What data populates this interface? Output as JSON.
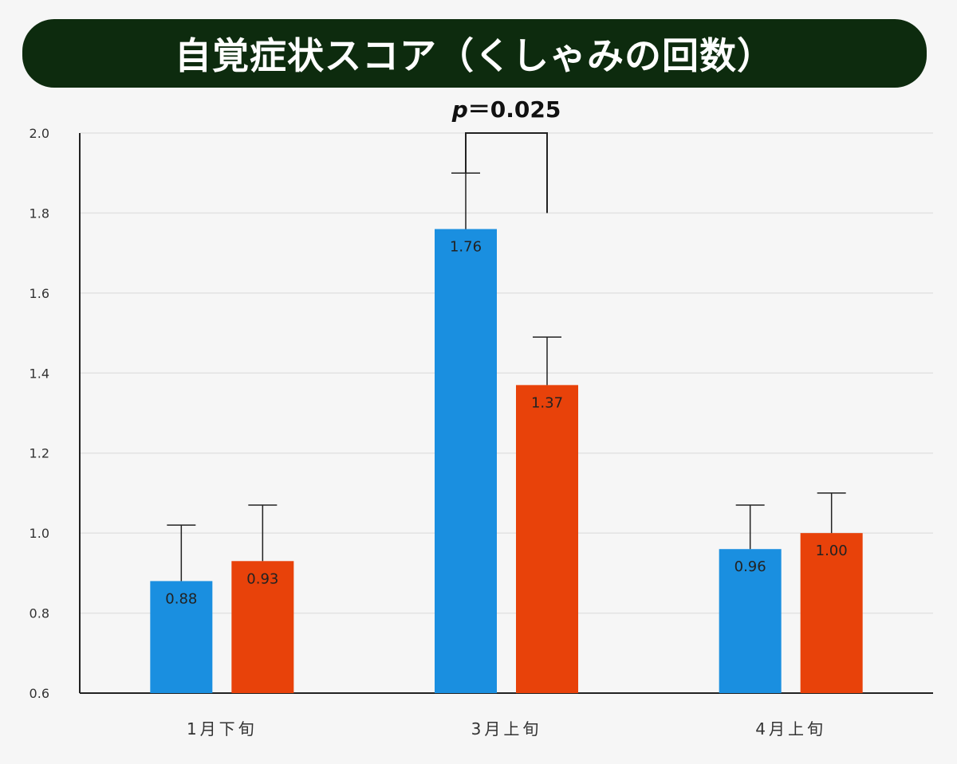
{
  "title": "自覚症状スコア（くしゃみの回数）",
  "colors": {
    "banner_bg": "#0d2b0e",
    "series_blue": "#1a8fe0",
    "series_red": "#e8420a",
    "grid": "#e2e2e2",
    "axis": "#222222"
  },
  "chart_data": {
    "type": "bar",
    "categories": [
      "1月下旬",
      "3月上旬",
      "4月上旬"
    ],
    "series": [
      {
        "color": "#1a8fe0",
        "values": [
          0.88,
          1.76,
          0.96
        ],
        "error_upper": [
          1.02,
          1.9,
          1.07
        ],
        "labels": [
          "0.88",
          "1.76",
          "0.96"
        ]
      },
      {
        "color": "#e8420a",
        "values": [
          0.93,
          1.37,
          1.0
        ],
        "error_upper": [
          1.07,
          1.49,
          1.1
        ],
        "labels": [
          "0.93",
          "1.37",
          "1.00"
        ]
      }
    ],
    "ylim": [
      0.6,
      2.0
    ],
    "yticks": [
      "0.6",
      "0.8",
      "1.0",
      "1.2",
      "1.4",
      "1.6",
      "1.8",
      "2.0"
    ],
    "grid": true,
    "annotation": {
      "text_italic": "p",
      "text_rest": "＝0.025",
      "category": "3月上旬",
      "bracket_top": 2.0,
      "left_end": 1.9,
      "right_end": 1.8
    }
  }
}
